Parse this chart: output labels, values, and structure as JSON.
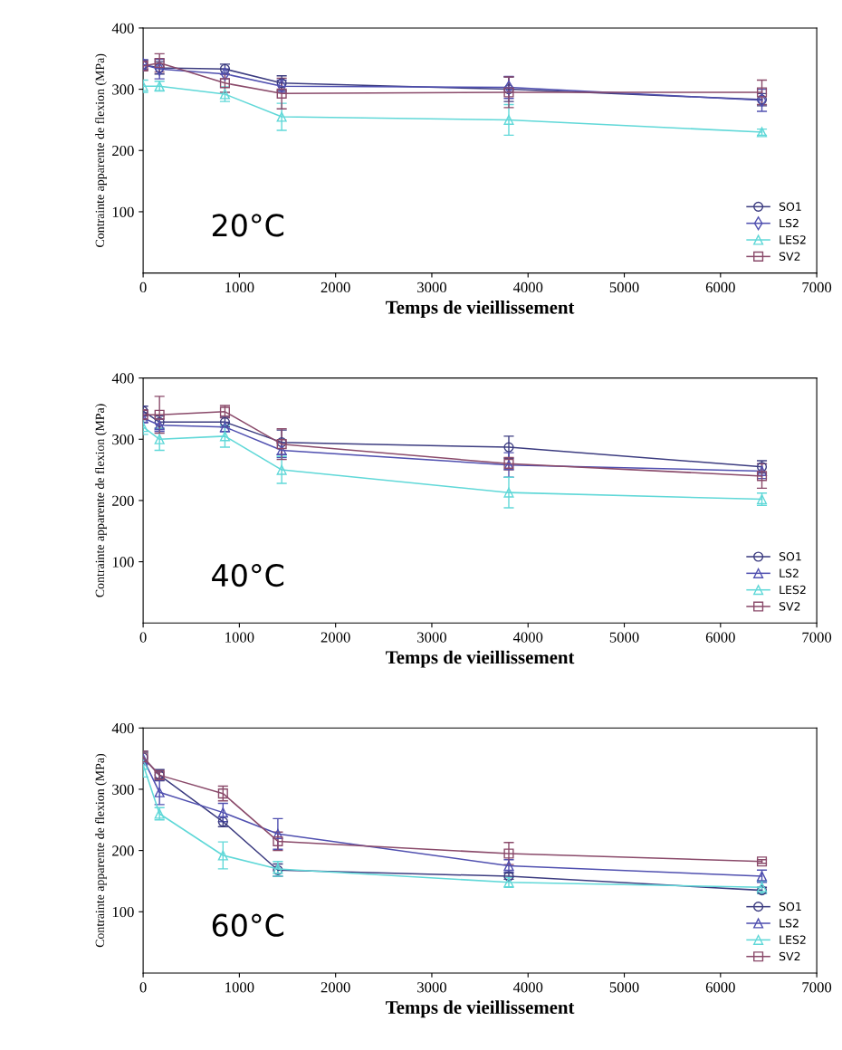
{
  "chart_data": [
    {
      "type": "line",
      "xlabel": "Temps de vieillissement",
      "ylabel": "Contrainte apparente de flexion (MPa)",
      "annotations": [
        "20°C"
      ],
      "x": [
        0,
        170,
        850,
        1440,
        3800,
        6430
      ],
      "xlim": [
        0,
        7000
      ],
      "xticks": [
        0,
        1000,
        2000,
        3000,
        4000,
        5000,
        6000,
        7000
      ],
      "ylim": [
        0,
        400
      ],
      "yticks": [
        100,
        200,
        300,
        400
      ],
      "grid": false,
      "legend": "bottom right",
      "series": [
        {
          "name": "SO1",
          "color": "#3c3c80",
          "marker": "circle",
          "values": [
            340,
            335,
            333,
            310,
            300,
            283
          ],
          "errors": [
            8,
            10,
            8,
            12,
            20,
            10
          ]
        },
        {
          "name": "LS2",
          "color": "#5050b0",
          "marker": "diamond",
          "values": [
            340,
            333,
            325,
            305,
            303,
            282
          ],
          "errors": [
            8,
            16,
            8,
            10,
            18,
            18
          ]
        },
        {
          "name": "LES2",
          "color": "#60d8d8",
          "marker": "triangle",
          "values": [
            305,
            305,
            292,
            255,
            250,
            230
          ],
          "errors": [
            10,
            8,
            12,
            22,
            25,
            5
          ]
        },
        {
          "name": "SV2",
          "color": "#8a4a6a",
          "marker": "square",
          "values": [
            338,
            343,
            310,
            293,
            295,
            295
          ],
          "errors": [
            8,
            15,
            15,
            25,
            25,
            20
          ]
        }
      ]
    },
    {
      "type": "line",
      "xlabel": "Temps de vieillissement",
      "ylabel": "Contrainte apparente de flexion (MPa)",
      "annotations": [
        "40°C"
      ],
      "x": [
        0,
        170,
        850,
        1440,
        3800,
        6430
      ],
      "xlim": [
        0,
        7000
      ],
      "xticks": [
        0,
        1000,
        2000,
        3000,
        4000,
        5000,
        6000,
        7000
      ],
      "ylim": [
        0,
        400
      ],
      "yticks": [
        100,
        200,
        300,
        400
      ],
      "grid": false,
      "legend": "bottom right",
      "series": [
        {
          "name": "SO1",
          "color": "#3c3c80",
          "marker": "circle",
          "values": [
            346,
            328,
            328,
            295,
            287,
            255
          ],
          "errors": [
            8,
            10,
            8,
            20,
            18,
            10
          ]
        },
        {
          "name": "LS2",
          "color": "#5050b0",
          "marker": "triangle",
          "values": [
            335,
            323,
            320,
            282,
            258,
            248
          ],
          "errors": [
            8,
            10,
            8,
            12,
            20,
            12
          ]
        },
        {
          "name": "LES2",
          "color": "#60d8d8",
          "marker": "triangle",
          "values": [
            320,
            300,
            305,
            250,
            213,
            202
          ],
          "errors": [
            12,
            18,
            18,
            22,
            25,
            10
          ]
        },
        {
          "name": "SV2",
          "color": "#8a4a6a",
          "marker": "square",
          "values": [
            340,
            340,
            345,
            292,
            260,
            240
          ],
          "errors": [
            8,
            30,
            10,
            25,
            10,
            20
          ]
        }
      ]
    },
    {
      "type": "line",
      "xlabel": "Temps de vieillissement",
      "ylabel": "Contrainte apparente de flexion (MPa)",
      "annotations": [
        "60°C"
      ],
      "x": [
        0,
        170,
        830,
        1400,
        3800,
        6430
      ],
      "xlim": [
        0,
        7000
      ],
      "xticks": [
        0,
        1000,
        2000,
        3000,
        4000,
        5000,
        6000,
        7000
      ],
      "ylim": [
        0,
        400
      ],
      "yticks": [
        100,
        200,
        300,
        400
      ],
      "grid": false,
      "legend": "bottom right",
      "series": [
        {
          "name": "SO1",
          "color": "#3c3c80",
          "marker": "circle",
          "values": [
            352,
            323,
            247,
            168,
            158,
            135
          ],
          "errors": [
            10,
            9,
            8,
            10,
            5,
            5
          ]
        },
        {
          "name": "LS2",
          "color": "#5050b0",
          "marker": "triangle",
          "values": [
            350,
            295,
            262,
            227,
            175,
            158
          ],
          "errors": [
            10,
            20,
            15,
            25,
            10,
            10
          ]
        },
        {
          "name": "LES2",
          "color": "#60d8d8",
          "marker": "triangle",
          "values": [
            340,
            260,
            192,
            170,
            148,
            140
          ],
          "errors": [
            20,
            10,
            22,
            12,
            8,
            10
          ]
        },
        {
          "name": "SV2",
          "color": "#8a4a6a",
          "marker": "square",
          "values": [
            352,
            323,
            293,
            215,
            195,
            182
          ],
          "errors": [
            10,
            5,
            12,
            15,
            18,
            3
          ]
        }
      ]
    }
  ]
}
